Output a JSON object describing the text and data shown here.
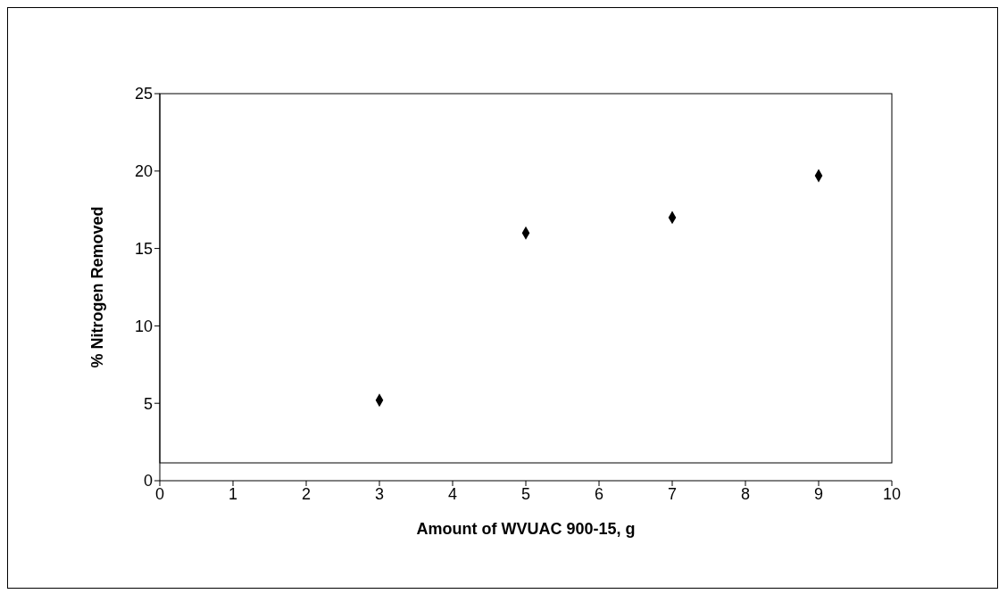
{
  "chart_data": {
    "type": "scatter",
    "xlabel": "Amount of WVUAC 900-15, g",
    "ylabel": "% Nitrogen Removed",
    "x": [
      3,
      5,
      7,
      9
    ],
    "values": [
      5.2,
      16.0,
      17.0,
      19.7
    ],
    "color": "#000000",
    "marker": "diamond",
    "xlim": [
      0,
      10
    ],
    "xticks": [
      0,
      1,
      2,
      3,
      4,
      5,
      6,
      7,
      8,
      9,
      10
    ],
    "ylim": [
      0,
      25
    ],
    "yticks": [
      0,
      5,
      10,
      15,
      20,
      25
    ],
    "grid": false,
    "legend": false
  }
}
